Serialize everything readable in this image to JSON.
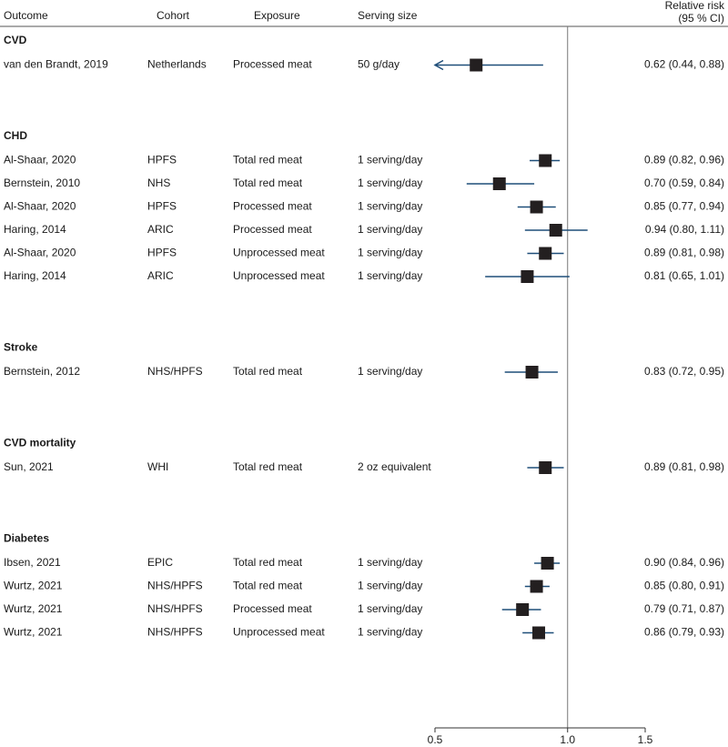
{
  "chart_data": {
    "type": "forest",
    "headers": {
      "outcome": "Outcome",
      "cohort": "Cohort",
      "exposure": "Exposure",
      "serving": "Serving size",
      "ci_title": "Relative risk",
      "ci_subtitle": "(95 % CI)"
    },
    "groups": [
      {
        "name": "CVD",
        "rows": [
          {
            "study": "van den Brandt, 2019",
            "cohort": "Netherlands",
            "exposure": "Processed meat",
            "serving": "50 g/day",
            "estimate": 0.62,
            "lower": 0.44,
            "upper": 0.88,
            "label": "0.62 (0.44, 0.88)"
          }
        ]
      },
      {
        "name": "CHD",
        "rows": [
          {
            "study": "Al-Shaar, 2020",
            "cohort": "HPFS",
            "exposure": "Total red meat",
            "serving": "1 serving/day",
            "estimate": 0.89,
            "lower": 0.82,
            "upper": 0.96,
            "label": "0.89 (0.82, 0.96)"
          },
          {
            "study": "Bernstein, 2010",
            "cohort": "NHS",
            "exposure": "Total red meat",
            "serving": "1 serving/day",
            "estimate": 0.7,
            "lower": 0.59,
            "upper": 0.84,
            "label": "0.70 (0.59, 0.84)"
          },
          {
            "study": "Al-Shaar, 2020",
            "cohort": "HPFS",
            "exposure": "Processed meat",
            "serving": "1 serving/day",
            "estimate": 0.85,
            "lower": 0.77,
            "upper": 0.94,
            "label": "0.85 (0.77, 0.94)"
          },
          {
            "study": "Haring, 2014",
            "cohort": "ARIC",
            "exposure": "Processed meat",
            "serving": "1 serving/day",
            "estimate": 0.94,
            "lower": 0.8,
            "upper": 1.11,
            "label": "0.94 (0.80, 1.11)"
          },
          {
            "study": "Al-Shaar, 2020",
            "cohort": "HPFS",
            "exposure": "Unprocessed meat",
            "serving": "1 serving/day",
            "estimate": 0.89,
            "lower": 0.81,
            "upper": 0.98,
            "label": "0.89 (0.81, 0.98)"
          },
          {
            "study": "Haring, 2014",
            "cohort": "ARIC",
            "exposure": "Unprocessed meat",
            "serving": "1 serving/day",
            "estimate": 0.81,
            "lower": 0.65,
            "upper": 1.01,
            "label": "0.81 (0.65, 1.01)"
          }
        ]
      },
      {
        "name": "Stroke",
        "rows": [
          {
            "study": "Bernstein, 2012",
            "cohort": "NHS/HPFS",
            "exposure": "Total red meat",
            "serving": "1 serving/day",
            "estimate": 0.83,
            "lower": 0.72,
            "upper": 0.95,
            "label": "0.83 (0.72, 0.95)"
          }
        ]
      },
      {
        "name": "CVD mortality",
        "rows": [
          {
            "study": "Sun, 2021",
            "cohort": "WHI",
            "exposure": "Total red meat",
            "serving": "2 oz equivalent",
            "estimate": 0.89,
            "lower": 0.81,
            "upper": 0.98,
            "label": "0.89 (0.81, 0.98)"
          }
        ]
      },
      {
        "name": "Diabetes",
        "rows": [
          {
            "study": "Ibsen, 2021",
            "cohort": "EPIC",
            "exposure": "Total red meat",
            "serving": "1 serving/day",
            "estimate": 0.9,
            "lower": 0.84,
            "upper": 0.96,
            "label": "0.90 (0.84, 0.96)"
          },
          {
            "study": "Wurtz, 2021",
            "cohort": "NHS/HPFS",
            "exposure": "Total red meat",
            "serving": "1 serving/day",
            "estimate": 0.85,
            "lower": 0.8,
            "upper": 0.91,
            "label": "0.85 (0.80, 0.91)"
          },
          {
            "study": "Wurtz, 2021",
            "cohort": "NHS/HPFS",
            "exposure": "Processed meat",
            "serving": "1 serving/day",
            "estimate": 0.79,
            "lower": 0.71,
            "upper": 0.87,
            "label": "0.79 (0.71, 0.87)"
          },
          {
            "study": "Wurtz, 2021",
            "cohort": "NHS/HPFS",
            "exposure": "Unprocessed meat",
            "serving": "1 serving/day",
            "estimate": 0.86,
            "lower": 0.79,
            "upper": 0.93,
            "label": "0.86 (0.79, 0.93)"
          }
        ]
      }
    ],
    "xlim": [
      0.5,
      1.5
    ],
    "xticks": [
      0.5,
      {
        "value": 1,
        "label": "1.0"
      },
      1.5
    ],
    "log_scale": true,
    "reference": 1,
    "box_color": "#231f20",
    "ci_color": "#1f4e79"
  }
}
